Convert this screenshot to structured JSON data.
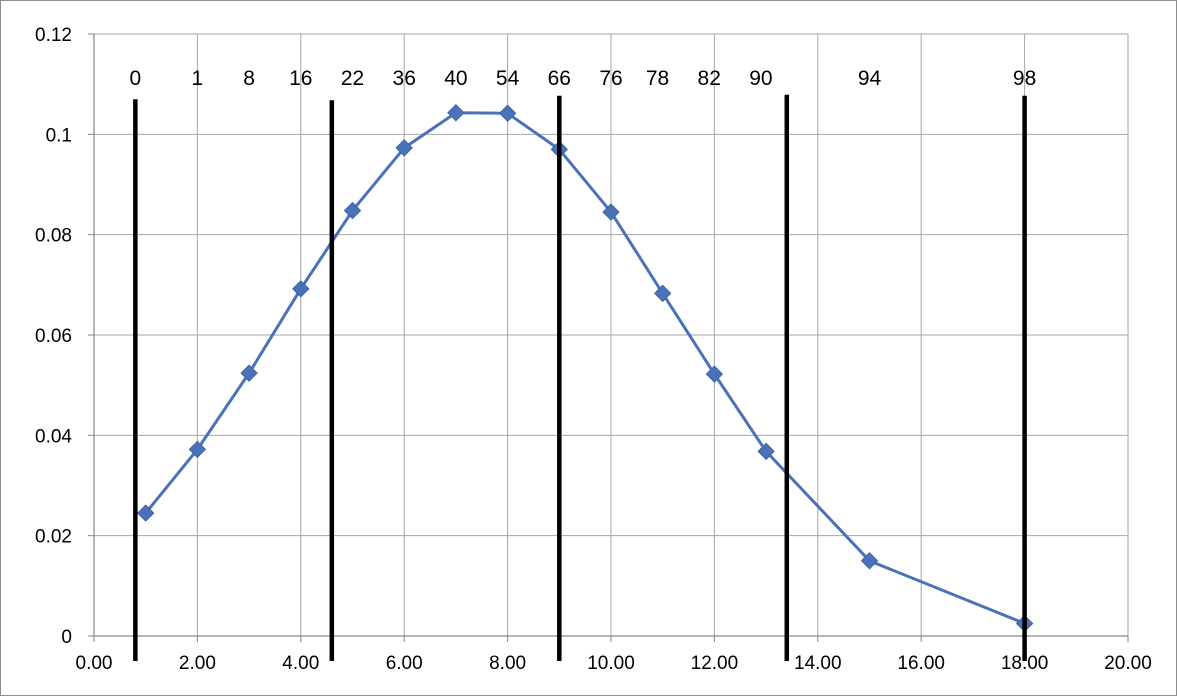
{
  "chart_data": {
    "type": "scatter",
    "title": "",
    "xlabel": "",
    "ylabel": "",
    "xlim": [
      0,
      20
    ],
    "ylim": [
      0,
      0.12
    ],
    "x_tick_labels": [
      "0.00",
      "2.00",
      "4.00",
      "6.00",
      "8.00",
      "10.00",
      "12.00",
      "14.00",
      "16.00",
      "18.00",
      "20.00"
    ],
    "y_tick_labels": [
      "0",
      "0.02",
      "0.04",
      "0.06",
      "0.08",
      "0.1",
      "0.12"
    ],
    "x_ticks": [
      0,
      2,
      4,
      6,
      8,
      10,
      12,
      14,
      16,
      18,
      20
    ],
    "y_ticks": [
      0,
      0.02,
      0.04,
      0.06,
      0.08,
      0.1,
      0.12
    ],
    "grid": true,
    "legend": "none",
    "series": [
      {
        "x": [
          1,
          2,
          3,
          4,
          5,
          6,
          7,
          8,
          9,
          10,
          11,
          12,
          13,
          15,
          18
        ],
        "y": [
          0.0245,
          0.0372,
          0.0524,
          0.0692,
          0.0848,
          0.0973,
          0.1043,
          0.1042,
          0.097,
          0.0845,
          0.0683,
          0.0522,
          0.0368,
          0.015,
          0.0025
        ],
        "color": "#4a72b8",
        "marker": "diamond",
        "connected": true
      }
    ],
    "vertical_lines": [
      {
        "x": 0.8,
        "y_top": 0.107,
        "color": "#000000"
      },
      {
        "x": 4.6,
        "y_top": 0.1068,
        "color": "#000000"
      },
      {
        "x": 9.0,
        "y_top": 0.1077,
        "color": "#000000"
      },
      {
        "x": 13.4,
        "y_top": 0.1079,
        "color": "#000000"
      },
      {
        "x": 18.0,
        "y_top": 0.1077,
        "color": "#000000"
      }
    ],
    "annotations": [
      {
        "text": "0",
        "x": 0.8,
        "y": 0.1098
      },
      {
        "text": "1",
        "x": 2.0,
        "y": 0.1098
      },
      {
        "text": "8",
        "x": 3.0,
        "y": 0.1098
      },
      {
        "text": "16",
        "x": 4.0,
        "y": 0.1098
      },
      {
        "text": "22",
        "x": 5.0,
        "y": 0.1098
      },
      {
        "text": "36",
        "x": 6.0,
        "y": 0.1098
      },
      {
        "text": "40",
        "x": 7.0,
        "y": 0.1098
      },
      {
        "text": "54",
        "x": 8.0,
        "y": 0.1098
      },
      {
        "text": "66",
        "x": 9.0,
        "y": 0.1098
      },
      {
        "text": "76",
        "x": 10.0,
        "y": 0.1098
      },
      {
        "text": "78",
        "x": 10.9,
        "y": 0.1098
      },
      {
        "text": "82",
        "x": 11.9,
        "y": 0.1098
      },
      {
        "text": "90",
        "x": 12.9,
        "y": 0.1098
      },
      {
        "text": "94",
        "x": 15.0,
        "y": 0.1098
      },
      {
        "text": "98",
        "x": 18.0,
        "y": 0.1098
      }
    ],
    "colors": {
      "gridline": "#a6a6a6",
      "axis": "#868686",
      "series": "#4a72b8",
      "vertical_line": "#000000"
    }
  }
}
